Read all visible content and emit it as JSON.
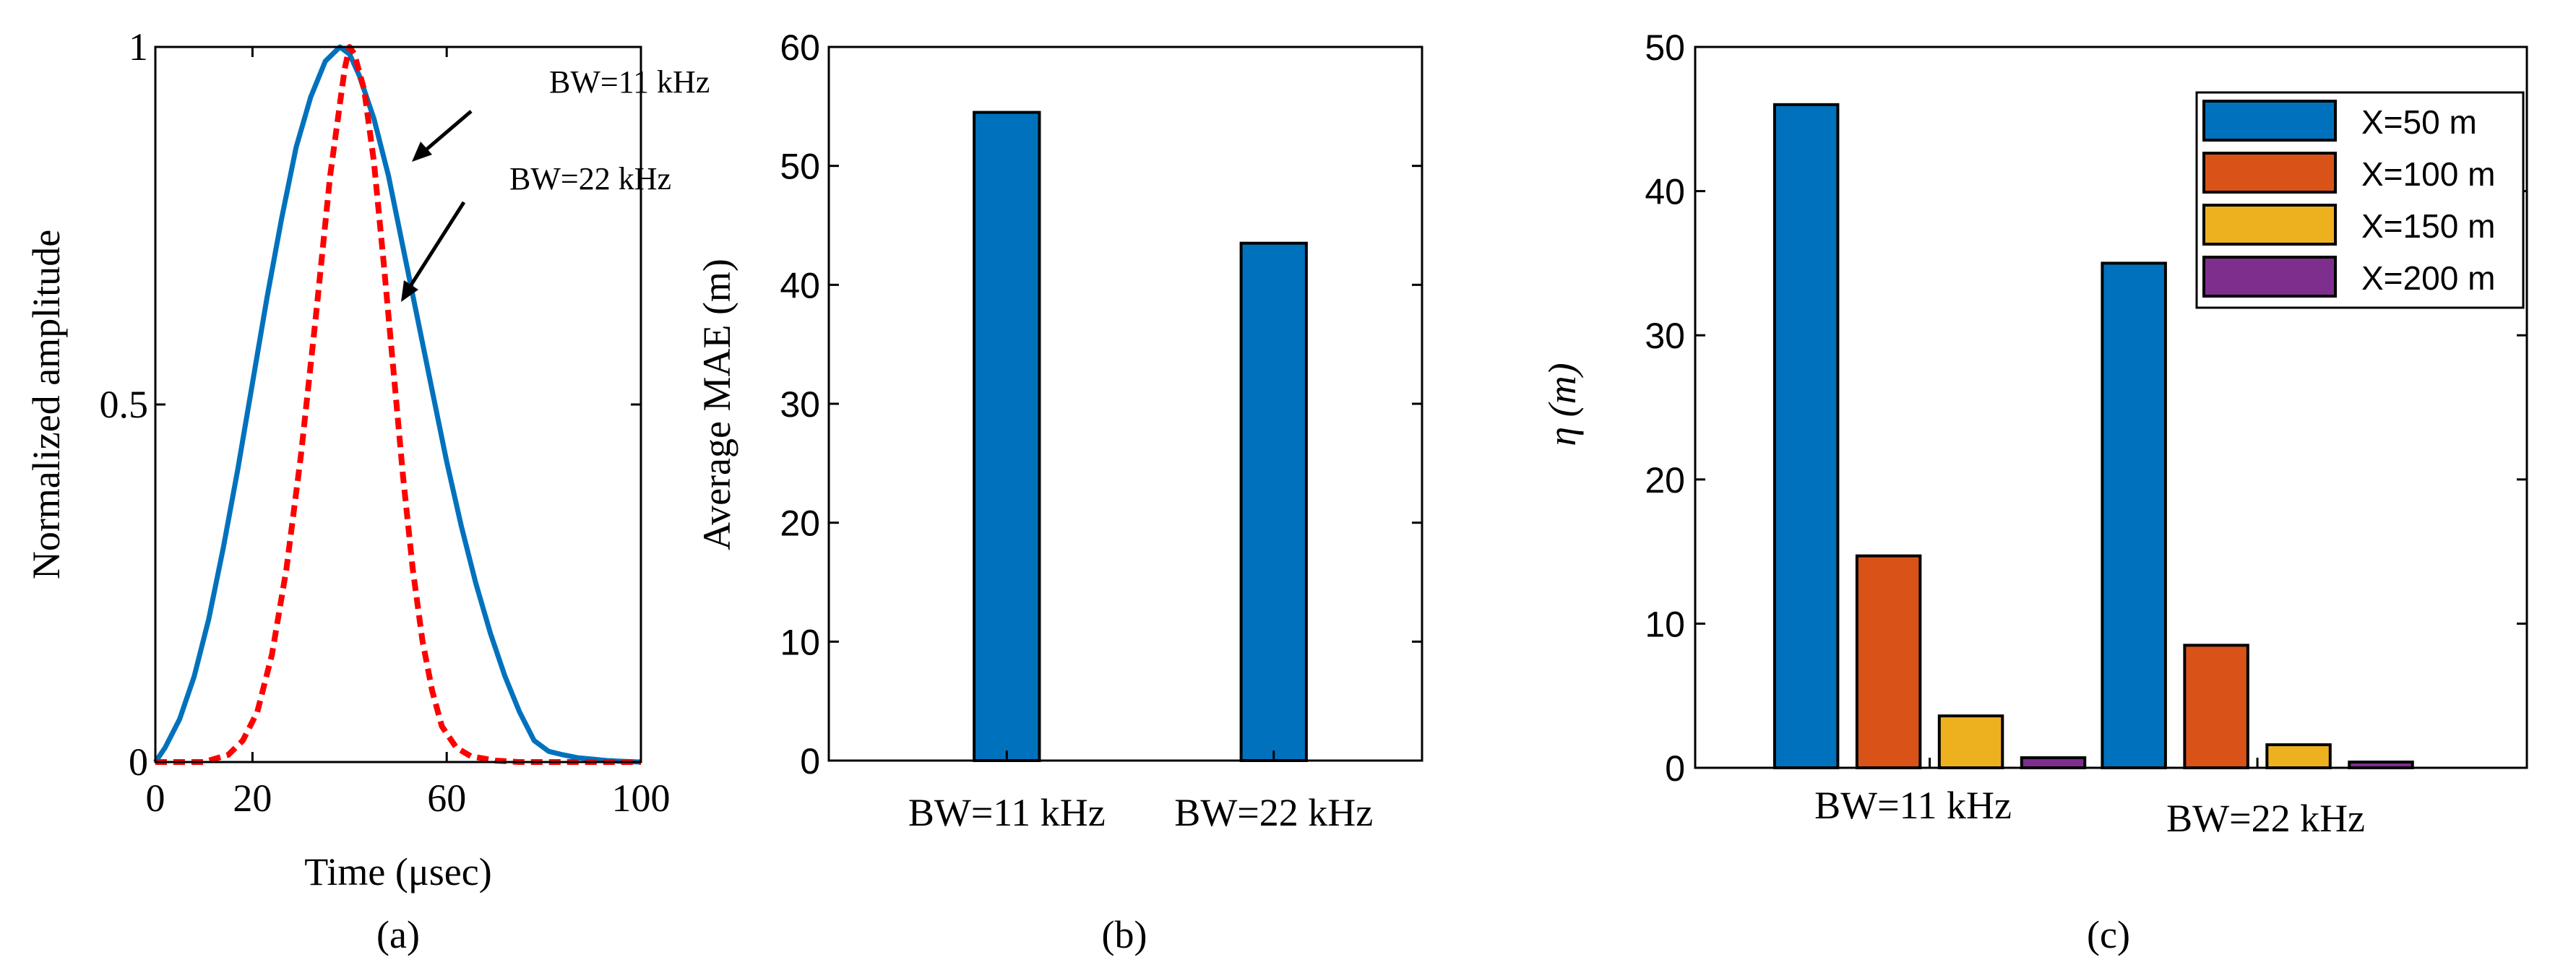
{
  "chart_data": [
    {
      "type": "line",
      "panel_label": "(a)",
      "xlabel": "Time (μsec)",
      "ylabel": "Normalized amplitude",
      "xlim": [
        0,
        100
      ],
      "ylim": [
        0,
        1
      ],
      "x_ticks": [
        "0",
        "20",
        "60",
        "100"
      ],
      "y_ticks": [
        "0",
        "0.5",
        "1"
      ],
      "grid": false,
      "series": [
        {
          "name": "BW=11 kHz",
          "color": "#0072BD",
          "style": "solid",
          "x": [
            0,
            2,
            5,
            8,
            11,
            14,
            17,
            20,
            23,
            26,
            29,
            32,
            35,
            38,
            40,
            42,
            45,
            48,
            51,
            54,
            57,
            60,
            63,
            66,
            69,
            72,
            75,
            78,
            81,
            84,
            87,
            90,
            93,
            96,
            100
          ],
          "y": [
            0.0,
            0.02,
            0.06,
            0.12,
            0.2,
            0.3,
            0.41,
            0.53,
            0.65,
            0.76,
            0.86,
            0.93,
            0.98,
            1.0,
            0.99,
            0.96,
            0.9,
            0.82,
            0.72,
            0.62,
            0.52,
            0.42,
            0.33,
            0.25,
            0.18,
            0.12,
            0.07,
            0.03,
            0.015,
            0.01,
            0.006,
            0.004,
            0.002,
            0.001,
            0.0
          ]
        },
        {
          "name": "BW=22 kHz",
          "color": "#FF0000",
          "style": "dashed",
          "x": [
            0,
            5,
            10,
            15,
            18,
            21,
            24,
            27,
            30,
            33,
            36,
            39,
            40,
            41,
            43,
            45,
            47,
            49,
            51,
            53,
            55,
            57,
            59,
            62,
            65,
            70,
            75,
            80,
            90,
            100
          ],
          "y": [
            0.0,
            0.0,
            0.0,
            0.01,
            0.03,
            0.07,
            0.15,
            0.27,
            0.43,
            0.62,
            0.82,
            0.97,
            1.0,
            0.99,
            0.94,
            0.84,
            0.7,
            0.55,
            0.4,
            0.27,
            0.17,
            0.1,
            0.05,
            0.02,
            0.008,
            0.002,
            0.0,
            0.0,
            0.0,
            0.0
          ]
        }
      ],
      "annotations": [
        "BW=11 kHz",
        "BW=22 kHz"
      ]
    },
    {
      "type": "bar",
      "panel_label": "(b)",
      "ylabel": "Average MAE (m)",
      "categories": [
        "BW=11 kHz",
        "BW=22 kHz"
      ],
      "values": [
        54.5,
        43.5
      ],
      "ylim": [
        0,
        60
      ],
      "y_ticks": [
        "0",
        "10",
        "20",
        "30",
        "40",
        "50",
        "60"
      ],
      "color": "#0072BD",
      "grid": false
    },
    {
      "type": "bar",
      "panel_label": "(c)",
      "ylabel": "η (m)",
      "categories": [
        "BW=11 kHz",
        "BW=22 kHz"
      ],
      "ylim": [
        0,
        50
      ],
      "y_ticks": [
        "0",
        "10",
        "20",
        "30",
        "40",
        "50"
      ],
      "legend_position": "top-right",
      "grid": false,
      "series": [
        {
          "name": "X=50 m",
          "color": "#0072BD",
          "values": [
            46,
            35
          ]
        },
        {
          "name": "X=100 m",
          "color": "#D95319",
          "values": [
            14.7,
            8.5
          ]
        },
        {
          "name": "X=150 m",
          "color": "#EDB120",
          "values": [
            3.6,
            1.6
          ]
        },
        {
          "name": "X=200 m",
          "color": "#7E2F8E",
          "values": [
            0.7,
            0.4
          ]
        }
      ]
    }
  ]
}
